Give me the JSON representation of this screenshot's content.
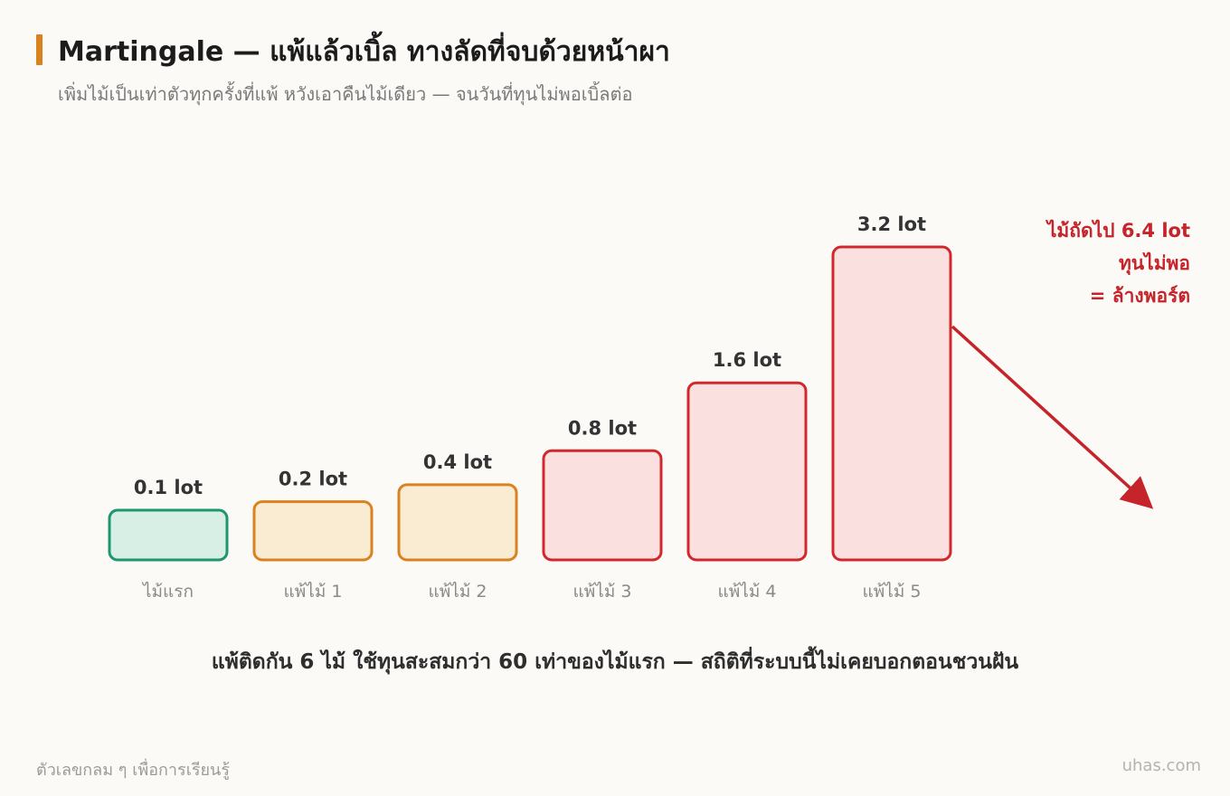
{
  "header": {
    "title": "Martingale — แพ้แล้วเบิ้ล ทางลัดที่จบด้วยหน้าผา",
    "subtitle": "เพิ่มไม้เป็นเท่าตัวทุกครั้งที่แพ้ หวังเอาคืนไม้เดียว — จนวันที่ทุนไม่พอเบิ้ลต่อ"
  },
  "chart_data": {
    "type": "bar",
    "categories": [
      "ไม้แรก",
      "แพ้ไม้ 1",
      "แพ้ไม้ 2",
      "แพ้ไม้ 3",
      "แพ้ไม้ 4",
      "แพ้ไม้ 5"
    ],
    "values": [
      0.1,
      0.2,
      0.4,
      0.8,
      1.6,
      3.2
    ],
    "value_labels": [
      "0.1 lot",
      "0.2 lot",
      "0.4 lot",
      "0.8 lot",
      "1.6 lot",
      "3.2 lot"
    ],
    "bar_styles": [
      {
        "stroke": "#1e9670",
        "fill": "#d8efe5"
      },
      {
        "stroke": "#d9821f",
        "fill": "#faebd3"
      },
      {
        "stroke": "#d9821f",
        "fill": "#faebd3"
      },
      {
        "stroke": "#d1282e",
        "fill": "#fae0de"
      },
      {
        "stroke": "#d1282e",
        "fill": "#fae0de"
      },
      {
        "stroke": "#d1282e",
        "fill": "#fae0de"
      }
    ],
    "annotation": {
      "lines": [
        "ไม้ถัดไป 6.4 lot",
        "ทุนไม่พอ",
        "= ล้างพอร์ต"
      ],
      "color": "#c4242a"
    },
    "xlabel": "",
    "ylabel": "",
    "grid": false
  },
  "summary": "แพ้ติดกัน 6 ไม้ ใช้ทุนสะสมกว่า 60 เท่าของไม้แรก — สถิติที่ระบบนี้ไม่เคยบอกตอนชวนฝัน",
  "footer": {
    "left": "ตัวเลขกลม ๆ เพื่อการเรียนรู้",
    "right": "uhas.com"
  },
  "colors": {
    "accent": "#d9821f",
    "danger": "#c4242a",
    "background": "#fbfaf7"
  }
}
